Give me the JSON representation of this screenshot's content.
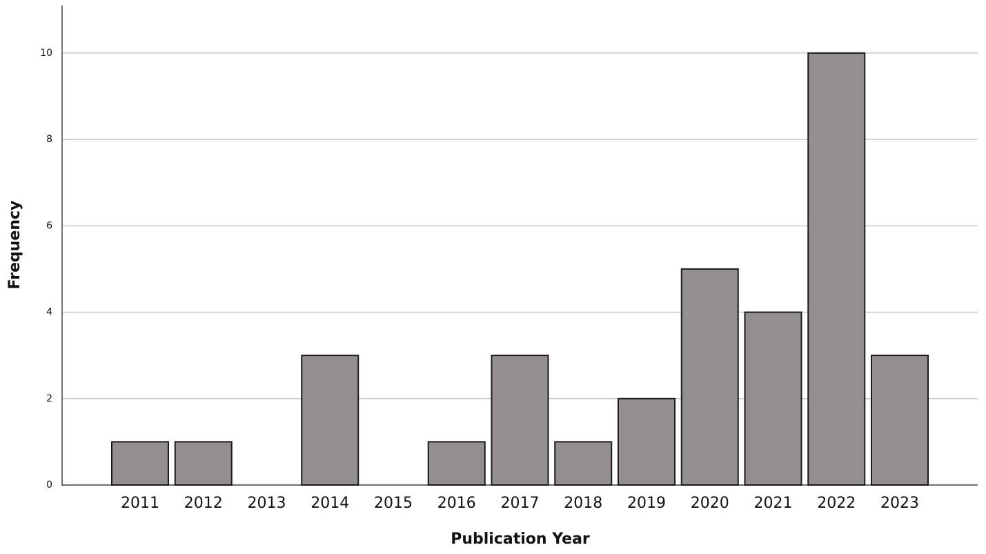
{
  "chart_data": {
    "type": "bar",
    "x_label": "Publication Year",
    "y_label": "Frequency",
    "categories": [
      "2011",
      "2012",
      "2013",
      "2014",
      "2015",
      "2016",
      "2017",
      "2018",
      "2019",
      "2020",
      "2021",
      "2022",
      "2023"
    ],
    "values": [
      1,
      1,
      0,
      3,
      0,
      1,
      3,
      1,
      2,
      5,
      4,
      10,
      3
    ],
    "color": "#938f8e",
    "ylim": [
      0,
      11.1
    ],
    "yticks": [
      0,
      2,
      4,
      6,
      8,
      10
    ],
    "grid": true
  }
}
